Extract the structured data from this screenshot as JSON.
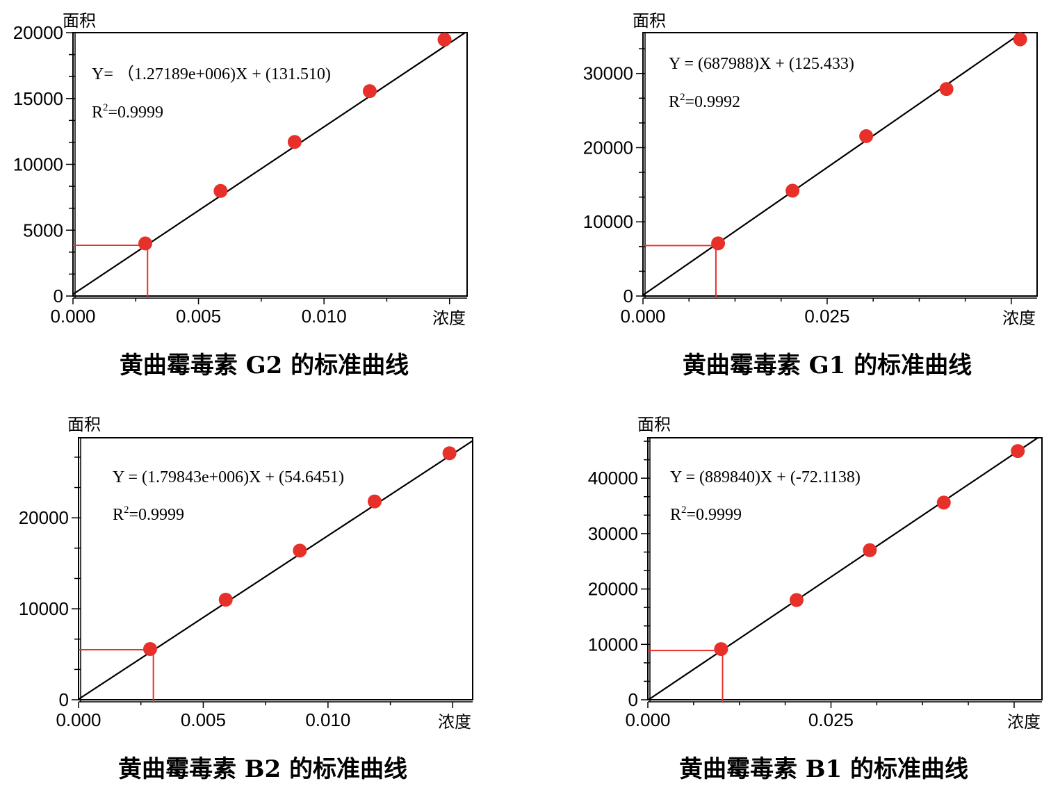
{
  "colors": {
    "point": "#e8302a",
    "guide": "#e8302a",
    "line": "#000000"
  },
  "chart_data": [
    {
      "type": "scatter",
      "title": "黄曲霉毒素 G2 的标准曲线",
      "xlabel": "浓度",
      "ylabel": "面积",
      "xlim": [
        0,
        0.0157
      ],
      "ylim": [
        0,
        20000
      ],
      "xticks": [
        0,
        0.005,
        0.01
      ],
      "xtick_labels": [
        "0.000",
        "0.005",
        "0.010"
      ],
      "yticks": [
        0,
        5000,
        10000,
        15000,
        20000
      ],
      "ytick_labels": [
        "0",
        "5000",
        "10000",
        "15000",
        "20000"
      ],
      "equation": "Y=  （1.27189e+006)X + (131.510)",
      "r2_prefix": "R",
      "r2_sup": "2",
      "r2_suffix": "=0.9999",
      "fit": {
        "slope": 1271890,
        "intercept": 131.51
      },
      "points": [
        {
          "x": 0.00288,
          "y": 3990
        },
        {
          "x": 0.00588,
          "y": 7980
        },
        {
          "x": 0.00883,
          "y": 11700
        },
        {
          "x": 0.01182,
          "y": 15560
        },
        {
          "x": 0.0148,
          "y": 19470
        }
      ],
      "guide": {
        "x": 0.00297,
        "y": 3850
      }
    },
    {
      "type": "scatter",
      "title": "黄曲霉毒素 G1 的标准曲线",
      "xlabel": "浓度",
      "ylabel": "面积",
      "xlim": [
        0,
        0.0535
      ],
      "ylim": [
        0,
        35500
      ],
      "xticks": [
        0,
        0.025
      ],
      "xtick_labels": [
        "0.000",
        "0.025"
      ],
      "yticks": [
        0,
        10000,
        20000,
        30000
      ],
      "ytick_labels": [
        "0",
        "10000",
        "20000",
        "30000"
      ],
      "equation": "Y = (687988)X + (125.433)",
      "r2_prefix": "R",
      "r2_sup": "2",
      "r2_suffix": "=0.9992",
      "fit": {
        "slope": 687988,
        "intercept": 125.433
      },
      "points": [
        {
          "x": 0.0102,
          "y": 7100
        },
        {
          "x": 0.0203,
          "y": 14200
        },
        {
          "x": 0.0303,
          "y": 21550
        },
        {
          "x": 0.0412,
          "y": 27900
        },
        {
          "x": 0.0512,
          "y": 34600
        }
      ],
      "guide": {
        "x": 0.0099,
        "y": 6800
      }
    },
    {
      "type": "scatter",
      "title": "黄曲霉毒素 B2 的标准曲线",
      "xlabel": "浓度",
      "ylabel": "面积",
      "xlim": [
        0,
        0.0158
      ],
      "ylim": [
        0,
        28800
      ],
      "xticks": [
        0,
        0.005,
        0.01
      ],
      "xtick_labels": [
        "0.000",
        "0.005",
        "0.010"
      ],
      "yticks": [
        0,
        10000,
        20000
      ],
      "ytick_labels": [
        "0",
        "10000",
        "20000"
      ],
      "equation": "Y = (1.79843e+006)X + (54.6451)",
      "r2_prefix": "R",
      "r2_sup": "2",
      "r2_suffix": "=0.9999",
      "fit": {
        "slope": 1798430,
        "intercept": 54.6451
      },
      "points": [
        {
          "x": 0.00287,
          "y": 5580
        },
        {
          "x": 0.0059,
          "y": 11000
        },
        {
          "x": 0.00887,
          "y": 16400
        },
        {
          "x": 0.01187,
          "y": 21800
        },
        {
          "x": 0.01487,
          "y": 27100
        }
      ],
      "guide": {
        "x": 0.003,
        "y": 5500
      }
    },
    {
      "type": "scatter",
      "title": "黄曲霉毒素 B1 的标准曲线",
      "xlabel": "浓度",
      "ylabel": "面积",
      "xlim": [
        0,
        0.0538
      ],
      "ylim": [
        0,
        47300
      ],
      "xticks": [
        0,
        0.025
      ],
      "xtick_labels": [
        "0.000",
        "0.025"
      ],
      "yticks": [
        0,
        10000,
        20000,
        30000,
        40000
      ],
      "ytick_labels": [
        "0",
        "10000",
        "20000",
        "30000",
        "40000"
      ],
      "equation": "Y = (889840)X + (-72.1138)",
      "r2_prefix": "R",
      "r2_sup": "2",
      "r2_suffix": "=0.9999",
      "fit": {
        "slope": 889840,
        "intercept": -72.1138
      },
      "points": [
        {
          "x": 0.01,
          "y": 9150
        },
        {
          "x": 0.0203,
          "y": 18000
        },
        {
          "x": 0.0303,
          "y": 27000
        },
        {
          "x": 0.0404,
          "y": 35600
        },
        {
          "x": 0.0505,
          "y": 44900
        }
      ],
      "guide": {
        "x": 0.0102,
        "y": 8900
      }
    }
  ]
}
